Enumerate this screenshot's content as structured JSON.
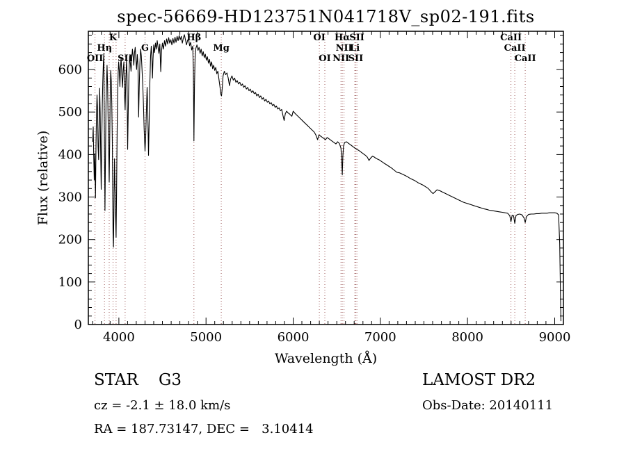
{
  "chart_data": {
    "type": "line",
    "title": "spec-56669-HD123751N041718V_sp02-191.fits",
    "xlabel": "Wavelength (Å)",
    "ylabel": "Flux (relative)",
    "xlim": [
      3650,
      9100
    ],
    "ylim": [
      0,
      690
    ],
    "xticks": [
      4000,
      5000,
      6000,
      7000,
      8000,
      9000
    ],
    "yticks": [
      0,
      100,
      200,
      300,
      400,
      500,
      600
    ],
    "grid": false,
    "background": "#ffffff",
    "line_color": "#000000",
    "marker_color": "#9e5a5a",
    "spectral_lines": [
      {
        "wavelength": 3727,
        "label": "OII",
        "row": 3
      },
      {
        "wavelength": 3835,
        "label": "Hη",
        "row": 2
      },
      {
        "wavelength": 3889,
        "label": "",
        "row": 0
      },
      {
        "wavelength": 3933,
        "label": "K",
        "row": 1
      },
      {
        "wavelength": 3968,
        "label": "",
        "row": 0
      },
      {
        "wavelength": 4072,
        "label": "SII",
        "row": 3
      },
      {
        "wavelength": 4300,
        "label": "G",
        "row": 2
      },
      {
        "wavelength": 4861,
        "label": "Hβ",
        "row": 1
      },
      {
        "wavelength": 5175,
        "label": "Mg",
        "row": 2
      },
      {
        "wavelength": 6300,
        "label": "OI",
        "row": 1
      },
      {
        "wavelength": 6363,
        "label": "OI",
        "row": 3
      },
      {
        "wavelength": 6548,
        "label": "NII",
        "row": 3
      },
      {
        "wavelength": 6563,
        "label": "Hα",
        "row": 1
      },
      {
        "wavelength": 6583,
        "label": "NII",
        "row": 2
      },
      {
        "wavelength": 6707,
        "label": "Li",
        "row": 2
      },
      {
        "wavelength": 6717,
        "label": "SII",
        "row": 3
      },
      {
        "wavelength": 6731,
        "label": "SII",
        "row": 1
      },
      {
        "wavelength": 8498,
        "label": "CaII",
        "row": 1
      },
      {
        "wavelength": 8542,
        "label": "CaII",
        "row": 2
      },
      {
        "wavelength": 8662,
        "label": "CaII",
        "row": 3
      }
    ],
    "points": [
      [
        3700,
        430
      ],
      [
        3706,
        465
      ],
      [
        3712,
        392
      ],
      [
        3718,
        340
      ],
      [
        3724,
        402
      ],
      [
        3727,
        368
      ],
      [
        3732,
        298
      ],
      [
        3738,
        420
      ],
      [
        3744,
        498
      ],
      [
        3750,
        540
      ],
      [
        3756,
        505
      ],
      [
        3762,
        420
      ],
      [
        3768,
        388
      ],
      [
        3774,
        470
      ],
      [
        3780,
        556
      ],
      [
        3786,
        500
      ],
      [
        3792,
        398
      ],
      [
        3798,
        318
      ],
      [
        3804,
        430
      ],
      [
        3810,
        520
      ],
      [
        3816,
        572
      ],
      [
        3822,
        615
      ],
      [
        3828,
        638
      ],
      [
        3835,
        415
      ],
      [
        3841,
        268
      ],
      [
        3847,
        405
      ],
      [
        3853,
        520
      ],
      [
        3859,
        568
      ],
      [
        3865,
        610
      ],
      [
        3871,
        562
      ],
      [
        3877,
        488
      ],
      [
        3883,
        420
      ],
      [
        3889,
        335
      ],
      [
        3895,
        430
      ],
      [
        3901,
        545
      ],
      [
        3907,
        598
      ],
      [
        3913,
        572
      ],
      [
        3919,
        520
      ],
      [
        3925,
        430
      ],
      [
        3930,
        300
      ],
      [
        3933,
        215
      ],
      [
        3938,
        182
      ],
      [
        3944,
        280
      ],
      [
        3950,
        390
      ],
      [
        3956,
        330
      ],
      [
        3962,
        262
      ],
      [
        3968,
        205
      ],
      [
        3974,
        310
      ],
      [
        3980,
        452
      ],
      [
        3986,
        540
      ],
      [
        3992,
        592
      ],
      [
        3998,
        618
      ],
      [
        4005,
        598
      ],
      [
        4012,
        560
      ],
      [
        4019,
        605
      ],
      [
        4026,
        628
      ],
      [
        4034,
        590
      ],
      [
        4042,
        558
      ],
      [
        4050,
        598
      ],
      [
        4058,
        618
      ],
      [
        4066,
        540
      ],
      [
        4072,
        505
      ],
      [
        4080,
        575
      ],
      [
        4088,
        622
      ],
      [
        4094,
        588
      ],
      [
        4101,
        412
      ],
      [
        4108,
        505
      ],
      [
        4116,
        590
      ],
      [
        4124,
        632
      ],
      [
        4132,
        615
      ],
      [
        4140,
        596
      ],
      [
        4148,
        625
      ],
      [
        4156,
        648
      ],
      [
        4164,
        632
      ],
      [
        4172,
        610
      ],
      [
        4180,
        640
      ],
      [
        4188,
        652
      ],
      [
        4196,
        622
      ],
      [
        4204,
        600
      ],
      [
        4212,
        635
      ],
      [
        4220,
        610
      ],
      [
        4227,
        488
      ],
      [
        4234,
        560
      ],
      [
        4242,
        618
      ],
      [
        4250,
        648
      ],
      [
        4258,
        632
      ],
      [
        4266,
        600
      ],
      [
        4274,
        565
      ],
      [
        4282,
        520
      ],
      [
        4290,
        462
      ],
      [
        4300,
        408
      ],
      [
        4308,
        445
      ],
      [
        4316,
        505
      ],
      [
        4324,
        558
      ],
      [
        4332,
        500
      ],
      [
        4340,
        398
      ],
      [
        4348,
        480
      ],
      [
        4356,
        572
      ],
      [
        4364,
        632
      ],
      [
        4372,
        655
      ],
      [
        4380,
        622
      ],
      [
        4386,
        580
      ],
      [
        4392,
        625
      ],
      [
        4400,
        658
      ],
      [
        4410,
        640
      ],
      [
        4420,
        662
      ],
      [
        4430,
        648
      ],
      [
        4440,
        668
      ],
      [
        4450,
        652
      ],
      [
        4460,
        638
      ],
      [
        4470,
        660
      ],
      [
        4481,
        595
      ],
      [
        4490,
        645
      ],
      [
        4500,
        662
      ],
      [
        4512,
        648
      ],
      [
        4524,
        668
      ],
      [
        4536,
        655
      ],
      [
        4548,
        672
      ],
      [
        4560,
        660
      ],
      [
        4572,
        675
      ],
      [
        4584,
        662
      ],
      [
        4596,
        670
      ],
      [
        4608,
        658
      ],
      [
        4620,
        673
      ],
      [
        4632,
        662
      ],
      [
        4644,
        676
      ],
      [
        4656,
        664
      ],
      [
        4668,
        678
      ],
      [
        4680,
        668
      ],
      [
        4692,
        680
      ],
      [
        4704,
        670
      ],
      [
        4716,
        678
      ],
      [
        4728,
        662
      ],
      [
        4740,
        674
      ],
      [
        4752,
        682
      ],
      [
        4764,
        670
      ],
      [
        4776,
        658
      ],
      [
        4788,
        668
      ],
      [
        4800,
        672
      ],
      [
        4812,
        656
      ],
      [
        4824,
        664
      ],
      [
        4836,
        646
      ],
      [
        4848,
        655
      ],
      [
        4855,
        600
      ],
      [
        4861,
        432
      ],
      [
        4868,
        560
      ],
      [
        4875,
        628
      ],
      [
        4884,
        650
      ],
      [
        4896,
        658
      ],
      [
        4908,
        645
      ],
      [
        4920,
        652
      ],
      [
        4932,
        638
      ],
      [
        4944,
        648
      ],
      [
        4956,
        632
      ],
      [
        4968,
        642
      ],
      [
        4980,
        628
      ],
      [
        4992,
        636
      ],
      [
        5004,
        622
      ],
      [
        5016,
        630
      ],
      [
        5028,
        615
      ],
      [
        5040,
        624
      ],
      [
        5052,
        608
      ],
      [
        5064,
        618
      ],
      [
        5076,
        602
      ],
      [
        5088,
        610
      ],
      [
        5100,
        598
      ],
      [
        5112,
        605
      ],
      [
        5124,
        590
      ],
      [
        5136,
        596
      ],
      [
        5148,
        578
      ],
      [
        5160,
        560
      ],
      [
        5170,
        542
      ],
      [
        5178,
        538
      ],
      [
        5186,
        556
      ],
      [
        5196,
        585
      ],
      [
        5210,
        596
      ],
      [
        5225,
        588
      ],
      [
        5240,
        592
      ],
      [
        5255,
        580
      ],
      [
        5269,
        562
      ],
      [
        5283,
        578
      ],
      [
        5298,
        585
      ],
      [
        5313,
        575
      ],
      [
        5328,
        580
      ],
      [
        5343,
        570
      ],
      [
        5358,
        574
      ],
      [
        5373,
        566
      ],
      [
        5388,
        570
      ],
      [
        5403,
        562
      ],
      [
        5418,
        566
      ],
      [
        5433,
        558
      ],
      [
        5448,
        562
      ],
      [
        5463,
        554
      ],
      [
        5478,
        558
      ],
      [
        5493,
        550
      ],
      [
        5508,
        554
      ],
      [
        5523,
        546
      ],
      [
        5538,
        550
      ],
      [
        5553,
        543
      ],
      [
        5568,
        546
      ],
      [
        5583,
        538
      ],
      [
        5598,
        542
      ],
      [
        5613,
        534
      ],
      [
        5628,
        538
      ],
      [
        5643,
        530
      ],
      [
        5658,
        534
      ],
      [
        5673,
        526
      ],
      [
        5688,
        530
      ],
      [
        5703,
        523
      ],
      [
        5718,
        526
      ],
      [
        5733,
        519
      ],
      [
        5748,
        522
      ],
      [
        5763,
        515
      ],
      [
        5778,
        518
      ],
      [
        5793,
        511
      ],
      [
        5808,
        514
      ],
      [
        5823,
        507
      ],
      [
        5838,
        510
      ],
      [
        5853,
        503
      ],
      [
        5868,
        506
      ],
      [
        5883,
        492
      ],
      [
        5896,
        480
      ],
      [
        5910,
        496
      ],
      [
        5925,
        502
      ],
      [
        5940,
        498
      ],
      [
        5955,
        496
      ],
      [
        5970,
        493
      ],
      [
        5985,
        490
      ],
      [
        6000,
        502
      ],
      [
        6020,
        497
      ],
      [
        6040,
        493
      ],
      [
        6060,
        489
      ],
      [
        6080,
        485
      ],
      [
        6100,
        481
      ],
      [
        6120,
        477
      ],
      [
        6140,
        473
      ],
      [
        6160,
        469
      ],
      [
        6180,
        465
      ],
      [
        6200,
        461
      ],
      [
        6220,
        457
      ],
      [
        6240,
        453
      ],
      [
        6260,
        446
      ],
      [
        6280,
        435
      ],
      [
        6295,
        446
      ],
      [
        6310,
        444
      ],
      [
        6330,
        441
      ],
      [
        6350,
        438
      ],
      [
        6370,
        435
      ],
      [
        6390,
        440
      ],
      [
        6410,
        437
      ],
      [
        6430,
        434
      ],
      [
        6450,
        431
      ],
      [
        6470,
        428
      ],
      [
        6490,
        425
      ],
      [
        6510,
        430
      ],
      [
        6530,
        426
      ],
      [
        6548,
        415
      ],
      [
        6556,
        390
      ],
      [
        6563,
        352
      ],
      [
        6570,
        395
      ],
      [
        6578,
        420
      ],
      [
        6590,
        428
      ],
      [
        6610,
        430
      ],
      [
        6630,
        427
      ],
      [
        6650,
        424
      ],
      [
        6670,
        421
      ],
      [
        6690,
        418
      ],
      [
        6710,
        415
      ],
      [
        6730,
        412
      ],
      [
        6750,
        410
      ],
      [
        6770,
        407
      ],
      [
        6790,
        404
      ],
      [
        6810,
        401
      ],
      [
        6830,
        398
      ],
      [
        6850,
        394
      ],
      [
        6870,
        386
      ],
      [
        6890,
        392
      ],
      [
        6910,
        396
      ],
      [
        6930,
        394
      ],
      [
        6950,
        391
      ],
      [
        6970,
        389
      ],
      [
        6990,
        387
      ],
      [
        7010,
        384
      ],
      [
        7040,
        380
      ],
      [
        7070,
        376
      ],
      [
        7100,
        372
      ],
      [
        7130,
        368
      ],
      [
        7160,
        363
      ],
      [
        7190,
        358
      ],
      [
        7220,
        357
      ],
      [
        7250,
        354
      ],
      [
        7280,
        351
      ],
      [
        7310,
        348
      ],
      [
        7340,
        344
      ],
      [
        7370,
        341
      ],
      [
        7400,
        338
      ],
      [
        7430,
        334
      ],
      [
        7460,
        331
      ],
      [
        7490,
        328
      ],
      [
        7520,
        324
      ],
      [
        7550,
        320
      ],
      [
        7580,
        313
      ],
      [
        7605,
        308
      ],
      [
        7625,
        312
      ],
      [
        7650,
        317
      ],
      [
        7680,
        315
      ],
      [
        7710,
        312
      ],
      [
        7740,
        309
      ],
      [
        7770,
        306
      ],
      [
        7800,
        303
      ],
      [
        7830,
        300
      ],
      [
        7860,
        297
      ],
      [
        7890,
        294
      ],
      [
        7920,
        291
      ],
      [
        7950,
        288
      ],
      [
        7980,
        286
      ],
      [
        8010,
        284
      ],
      [
        8040,
        282
      ],
      [
        8070,
        280
      ],
      [
        8100,
        278
      ],
      [
        8130,
        276
      ],
      [
        8160,
        274
      ],
      [
        8190,
        272
      ],
      [
        8220,
        271
      ],
      [
        8250,
        269
      ],
      [
        8280,
        268
      ],
      [
        8310,
        267
      ],
      [
        8340,
        266
      ],
      [
        8370,
        265
      ],
      [
        8400,
        264
      ],
      [
        8430,
        263
      ],
      [
        8460,
        262
      ],
      [
        8485,
        256
      ],
      [
        8498,
        242
      ],
      [
        8512,
        257
      ],
      [
        8528,
        256
      ],
      [
        8542,
        238
      ],
      [
        8556,
        256
      ],
      [
        8575,
        259
      ],
      [
        8600,
        260
      ],
      [
        8625,
        258
      ],
      [
        8650,
        250
      ],
      [
        8662,
        240
      ],
      [
        8676,
        254
      ],
      [
        8700,
        259
      ],
      [
        8730,
        260
      ],
      [
        8760,
        260
      ],
      [
        8790,
        261
      ],
      [
        8820,
        261
      ],
      [
        8850,
        262
      ],
      [
        8880,
        262
      ],
      [
        8910,
        262
      ],
      [
        8940,
        263
      ],
      [
        8970,
        263
      ],
      [
        9000,
        263
      ],
      [
        9025,
        262
      ],
      [
        9045,
        258
      ],
      [
        9058,
        190
      ],
      [
        9066,
        80
      ],
      [
        9072,
        8
      ]
    ]
  },
  "footer": {
    "class_line": "STAR    G3",
    "cz_line": "cz = -2.1 ± 18.0 km/s",
    "radec_line": "RA = 187.73147, DEC =   3.10414",
    "survey": "LAMOST DR2",
    "obs_date": "Obs-Date: 20140111"
  }
}
